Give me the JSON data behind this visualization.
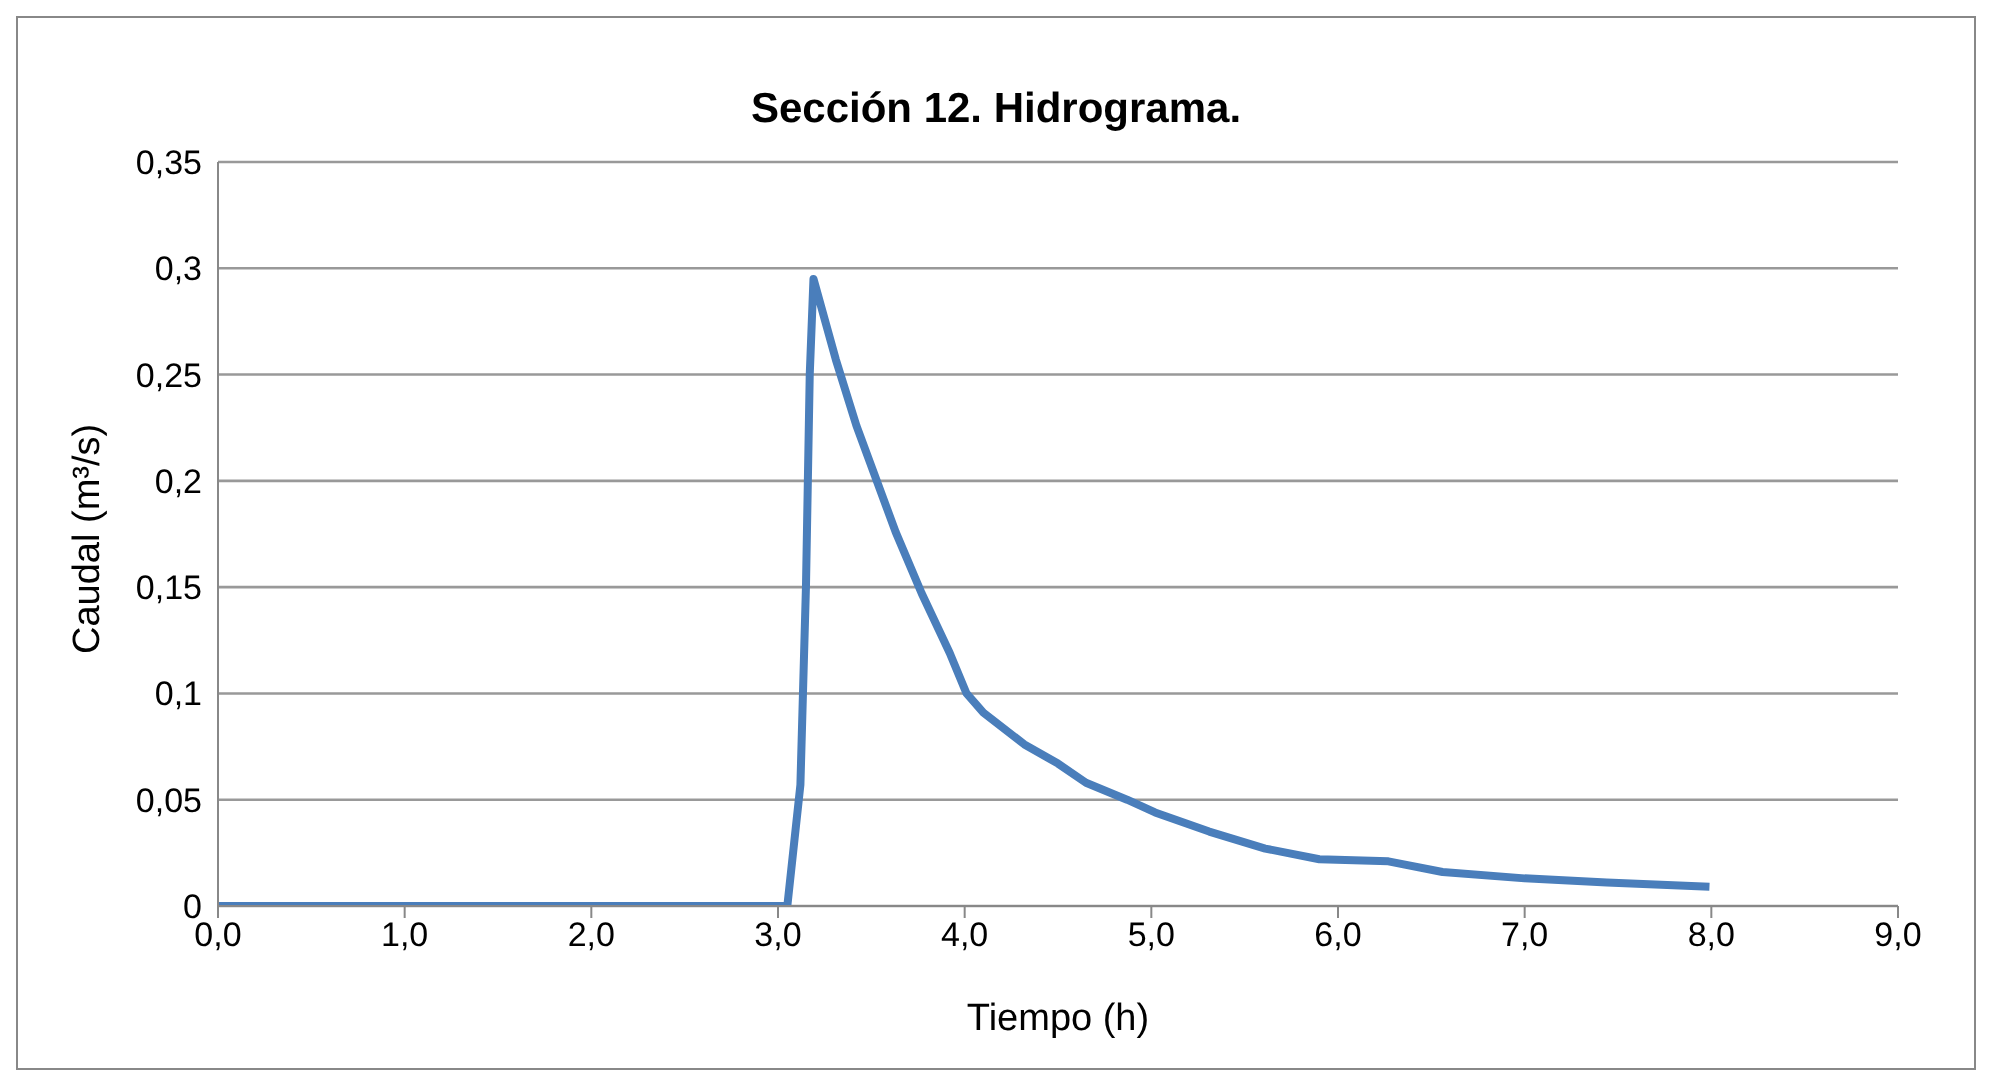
{
  "chart_data": {
    "type": "line",
    "title": "Sección 12. Hidrograma.",
    "xlabel": "Tiempo (h)",
    "ylabel": "Caudal (m³/s)",
    "x": [
      0,
      3.05,
      3.12,
      3.15,
      3.17,
      3.19,
      3.31,
      3.42,
      3.63,
      3.77,
      3.92,
      4.01,
      4.1,
      4.32,
      4.5,
      4.65,
      4.87,
      5.02,
      5.31,
      5.61,
      5.9,
      6.27,
      6.56,
      7.0,
      7.44,
      7.99
    ],
    "series": [
      {
        "color": "#4a7ebb",
        "values": [
          0,
          0,
          0.057,
          0.151,
          0.25,
          0.295,
          0.257,
          0.226,
          0.176,
          0.147,
          0.119,
          0.1,
          0.091,
          0.076,
          0.067,
          0.058,
          0.05,
          0.044,
          0.035,
          0.027,
          0.022,
          0.021,
          0.016,
          0.013,
          0.011,
          0.009
        ]
      }
    ],
    "xlim": [
      0,
      9
    ],
    "xticks": [
      {
        "value": 0,
        "label": "0,0"
      },
      {
        "value": 1,
        "label": "1,0"
      },
      {
        "value": 2,
        "label": "2,0"
      },
      {
        "value": 3,
        "label": "3,0"
      },
      {
        "value": 4,
        "label": "4,0"
      },
      {
        "value": 5,
        "label": "5,0"
      },
      {
        "value": 6,
        "label": "6,0"
      },
      {
        "value": 7,
        "label": "7,0"
      },
      {
        "value": 8,
        "label": "8,0"
      },
      {
        "value": 9,
        "label": "9,0"
      }
    ],
    "ylim": [
      0,
      0.35
    ],
    "yticks": [
      0,
      {
        "value": 0.05,
        "label": "0,05"
      },
      {
        "value": 0.1,
        "label": "0,1"
      },
      {
        "value": 0.15,
        "label": "0,15"
      },
      {
        "value": 0.2,
        "label": "0,2"
      },
      {
        "value": 0.25,
        "label": "0,25"
      },
      {
        "value": 0.3,
        "label": "0,3"
      },
      {
        "value": 0.35,
        "label": "0,35"
      }
    ],
    "grid": "y",
    "marker": "none",
    "line_style": "solid",
    "legend": false
  }
}
